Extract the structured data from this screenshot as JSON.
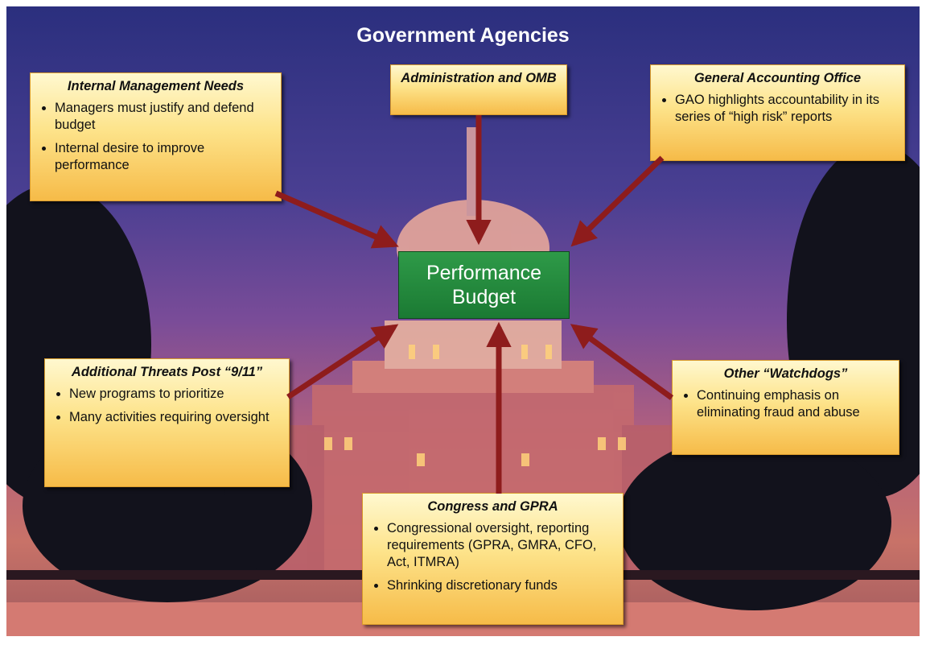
{
  "title": "Government Agencies",
  "center": {
    "label": "Performance Budget"
  },
  "boxes": [
    {
      "title": "Internal Management Needs",
      "bullets": [
        "Managers must justify and defend budget",
        "Internal desire to improve performance"
      ]
    },
    {
      "title": "Administration and OMB",
      "bullets": []
    },
    {
      "title": "General Accounting Office",
      "bullets": [
        "GAO highlights accountability in its series of “high risk” reports"
      ]
    },
    {
      "title": "Additional Threats Post “9/11”",
      "bullets": [
        "New programs to prioritize",
        "Many activities requiring oversight"
      ]
    },
    {
      "title": "Other “Watchdogs”",
      "bullets": [
        "Continuing emphasis on eliminating fraud and abuse"
      ]
    },
    {
      "title": "Congress and GPRA",
      "bullets": [
        "Congressional oversight, reporting requirements (GPRA, GMRA, CFO, Act, ITMRA)",
        "Shrinking discretionary funds"
      ]
    }
  ]
}
